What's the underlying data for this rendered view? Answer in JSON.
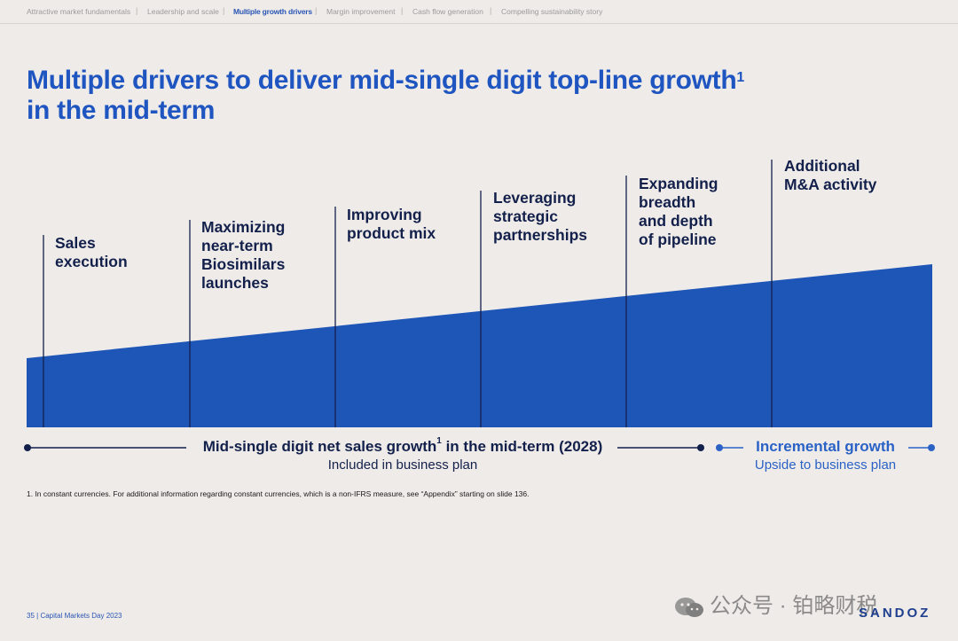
{
  "nav": {
    "items": [
      {
        "label": "Attractive market fundamentals",
        "active": false
      },
      {
        "label": "Leadership and scale",
        "active": false
      },
      {
        "label": "Multiple growth drivers",
        "active": true
      },
      {
        "label": "Margin improvement",
        "active": false
      },
      {
        "label": "Cash flow generation",
        "active": false
      },
      {
        "label": "Compelling sustainability story",
        "active": false
      }
    ],
    "separator": "|"
  },
  "title": {
    "line1": "Multiple drivers to deliver mid-single digit top-line growth",
    "superscript": "1",
    "line2": "in the mid-term"
  },
  "drivers": [
    "Sales\nexecution",
    "Maximizing\nnear-term\nBiosimilars\nlaunches",
    "Improving\nproduct mix",
    "Leveraging\nstrategic\npartnerships",
    "Expanding\nbreadth\nand depth\nof pipeline",
    "Additional\nM&A activity"
  ],
  "bottom": {
    "main_text": "Mid-single digit net sales growth",
    "main_sup": "1",
    "main_suffix": " in the mid-term (2028)",
    "sub_text": "Included in business plan",
    "incremental_title": "Incremental growth",
    "incremental_sub": "Upside to business plan"
  },
  "footnote": "1. In constant currencies. For additional information regarding constant currencies, which is a non-IFRS measure, see “Appendix” starting on slide 136.",
  "footer": {
    "page": "35",
    "separator": "|",
    "event": "Capital Markets Day 2023"
  },
  "logo": "SANDOZ",
  "watermark": "公众号 · 铂略财税",
  "colors": {
    "primary_blue": "#1f55c0",
    "wedge_blue": "#1e56b8",
    "navy": "#12204b",
    "accent_blue": "#2a62c6",
    "background": "#efebe8"
  }
}
